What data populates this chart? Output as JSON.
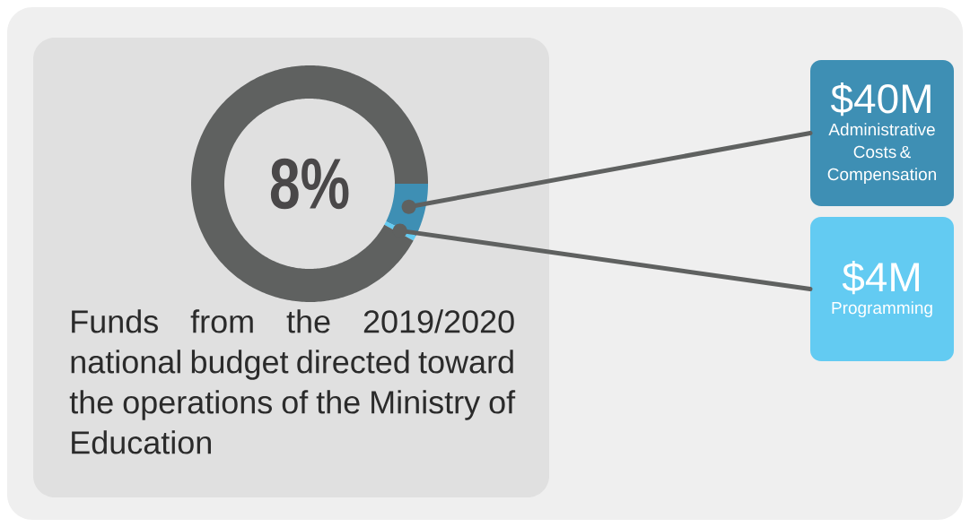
{
  "chart_data": {
    "type": "donut",
    "title": "Funds from the 2019/2020 national budget directed toward the operations of the Ministry of Education",
    "categories": [
      "Administrative Costs & Compensation",
      "Programming",
      null
    ],
    "values": [
      40,
      4,
      506
    ],
    "colors": [
      "#3e8fb4",
      "#63cbf2",
      "#5f6160"
    ],
    "value_labels": [
      "$40M",
      "$4M",
      null
    ],
    "annotations": [
      "8%"
    ]
  }
}
